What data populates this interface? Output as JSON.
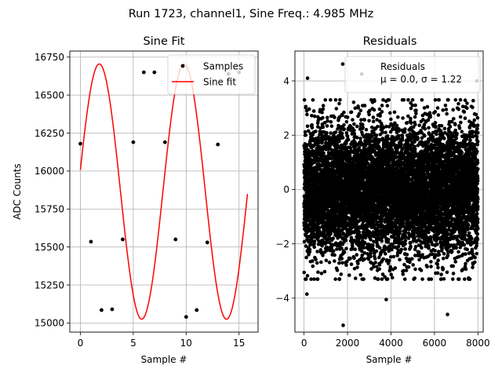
{
  "suptitle": "Run 1723, channel1, Sine Freq.: 4.985 MHz",
  "chart_data": [
    {
      "type": "line",
      "title": "Sine Fit",
      "xlabel": "Sample #",
      "ylabel": "ADC Counts",
      "xlim": [
        -1.0,
        16.8
      ],
      "ylim": [
        14940,
        16790
      ],
      "xticks": [
        0,
        5,
        10,
        15
      ],
      "yticks": [
        15000,
        15250,
        15500,
        15750,
        16000,
        16250,
        16500,
        16750
      ],
      "grid": true,
      "legend_placement": "upper-right",
      "series": [
        {
          "name": "Samples",
          "style": "markers",
          "color": "#000000",
          "x": [
            0,
            1,
            2,
            3,
            4,
            5,
            6,
            7,
            8,
            9,
            10,
            11,
            12,
            13,
            14,
            15
          ],
          "y": [
            16180,
            15535,
            15085,
            15090,
            15550,
            16190,
            16650,
            16650,
            16190,
            15550,
            15040,
            15085,
            15530,
            16175,
            16640,
            16650
          ]
        },
        {
          "name": "Sine fit",
          "style": "line",
          "color": "#ff0000",
          "fit": {
            "offset": 15865,
            "amplitude": 840,
            "period": 8.02,
            "phase": 0.17,
            "x_start": 0,
            "x_end": 15.8
          }
        }
      ]
    },
    {
      "type": "scatter",
      "title": "Residuals",
      "xlabel": "Sample #",
      "xlim": [
        -420,
        8240
      ],
      "ylim": [
        -5.25,
        5.1
      ],
      "xticks": [
        0,
        2000,
        4000,
        6000,
        8000
      ],
      "yticks": [
        -4,
        -2,
        0,
        2,
        4
      ],
      "grid": true,
      "legend_placement": "upper-right",
      "series": [
        {
          "name": "Residuals",
          "color": "#000000",
          "stats": {
            "mean": 0.0,
            "std": 1.22,
            "n": 8000
          },
          "outliers": [
            [
              1800,
              -5.0
            ],
            [
              1780,
              4.62
            ],
            [
              2650,
              4.25
            ],
            [
              160,
              4.1
            ],
            [
              3780,
              -4.05
            ],
            [
              6600,
              -4.6
            ],
            [
              7950,
              4.0
            ],
            [
              130,
              -3.85
            ]
          ]
        }
      ],
      "legend_text": [
        "Residuals",
        "μ = 0.0, σ = 1.22"
      ]
    }
  ]
}
